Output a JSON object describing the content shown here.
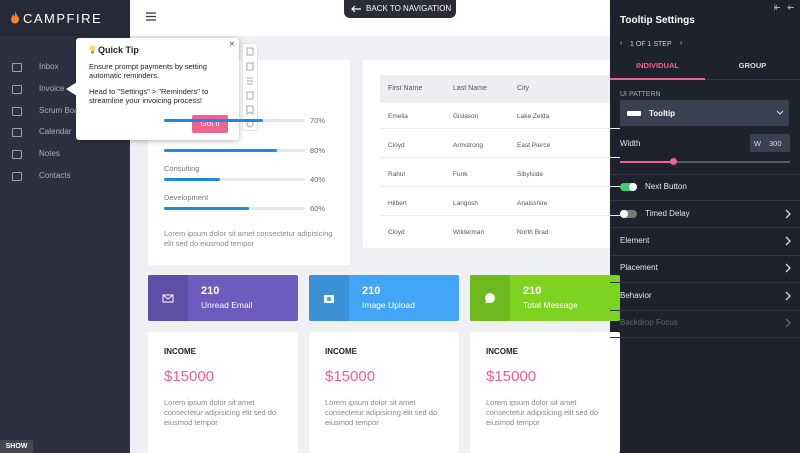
{
  "sidebar": {
    "logo": "CAMPFIRE",
    "menu": [
      "Inbox",
      "Invoice",
      "Scrum Board",
      "Calendar",
      "Notes",
      "Contacts"
    ],
    "show": "SHOW"
  },
  "topbar": {
    "back": "BACK TO NAVIGATION"
  },
  "skills": {
    "items": [
      {
        "value": 70,
        "label": "70%"
      },
      {
        "value": 80,
        "label": "80%"
      },
      {
        "name": "Consulting",
        "value": 40,
        "label": "40%"
      },
      {
        "name": "Development",
        "value": 60,
        "label": "60%"
      }
    ],
    "description": "Lorem ipsum dolor sit amet consectetur adipisicing elit sed do eiusmod tempor"
  },
  "table": {
    "headers": [
      "First Name",
      "Last Name",
      "City"
    ],
    "rows": [
      [
        "Emelia",
        "Gislason",
        "Lake Zelda"
      ],
      [
        "Cloyd",
        "Armstrong",
        "East Pierce"
      ],
      [
        "Rahul",
        "Funk",
        "Sibylside"
      ],
      [
        "Hilbert",
        "Langosh",
        "Anaisshire"
      ],
      [
        "Cloyd",
        "Wilderman",
        "North Brad"
      ]
    ]
  },
  "stats": [
    {
      "value": "210",
      "label": "Unread Email"
    },
    {
      "value": "210",
      "label": "Image Upload"
    },
    {
      "value": "210",
      "label": "Total Message"
    }
  ],
  "incomes": [
    {
      "title": "INCOME",
      "amount": "$15000",
      "text": "Lorem ipsum dolor sit amet consectetur adipisicing elit sed do eiusmod tempor"
    },
    {
      "title": "INCOME",
      "amount": "$15000",
      "text": "Lorem ipsum dolor sit amet consectetur adipisicing elit sed do eiusmod tempor"
    },
    {
      "title": "INCOME",
      "amount": "$15000",
      "text": "Lorem ipsum dolor sit amet consectetur adipisicing elit sed do eiusmod tempor"
    }
  ],
  "tooltip": {
    "title": "Quick Tip",
    "body": [
      "Ensure prompt payments by setting automatic reminders.",
      "Head to \"Settings\" > \"Reminders\" to streamline your invoicing process!"
    ],
    "button": "Got it"
  },
  "panel": {
    "title": "Tooltip Settings",
    "step": "1 OF 1 STEP",
    "tabs": [
      "INDIVIDUAL",
      "GROUP"
    ],
    "pattern_label": "UI PATTERN",
    "pattern": "Tooltip",
    "width_label": "Width",
    "width_prefix": "W",
    "width": "300",
    "toggles": [
      "Next Button",
      "Timed Delay"
    ],
    "sections": [
      "Element",
      "Placement",
      "Behavior",
      "Backdrop Focus"
    ]
  }
}
